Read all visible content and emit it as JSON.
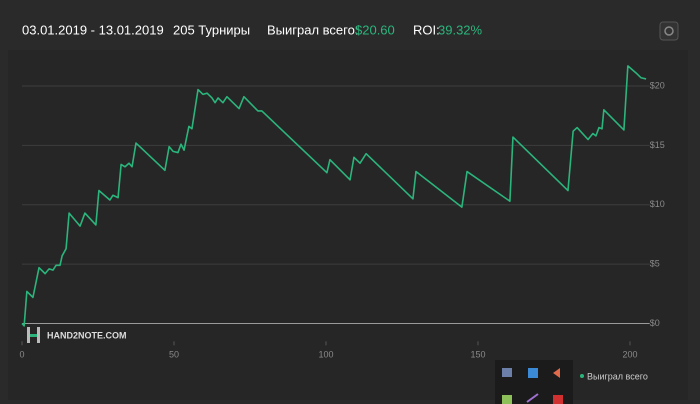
{
  "header": {
    "period": "03.01.2019 - 13.01.2019",
    "tournaments": "205 Турниры",
    "won_label": "Выиграл всего:",
    "won_value": "$20.60",
    "roi_label": "ROI:",
    "roi_value": "39.32%"
  },
  "logo": "HAND2NOTE.COM",
  "chart_data": {
    "type": "line",
    "x": [
      0,
      0.7,
      1.6,
      3.6,
      5.6,
      7.6,
      8.9,
      10.2,
      11.2,
      12.5,
      13.2,
      14.5,
      15.5,
      19.1,
      20.7,
      24.3,
      25.3,
      28.9,
      29.9,
      31.6,
      32.6,
      33.9,
      35.2,
      36.2,
      37.5,
      47,
      48.4,
      49.7,
      51.3,
      52.3,
      53.3,
      54.9,
      55.9,
      57.9,
      59.5,
      60.9,
      62.5,
      63.5,
      64.5,
      66.1,
      67.4,
      71.4,
      73,
      77.6,
      78.9,
      100.3,
      101.3,
      107.9,
      109.2,
      111.2,
      113.2,
      128.6,
      129.6,
      144.7,
      146.4,
      160.5,
      161.5,
      179.6,
      181.3,
      182.6,
      186.2,
      187.8,
      188.8,
      189.8,
      190.8,
      191.4,
      198,
      199.3,
      202,
      203.6,
      205.3
    ],
    "series": [
      {
        "name": "Выиграл всего",
        "color": "#2bb57c",
        "values": [
          0,
          -0.2,
          2.7,
          2.2,
          4.7,
          4.2,
          4.6,
          4.5,
          4.9,
          4.9,
          5.7,
          6.3,
          9.3,
          8.2,
          9.3,
          8.3,
          11.2,
          10.4,
          10.8,
          10.6,
          13.4,
          13.2,
          13.5,
          13.2,
          15.2,
          12.9,
          14.9,
          14.5,
          14.4,
          15.1,
          14.6,
          16.6,
          16.4,
          19.7,
          19.3,
          19.4,
          19.0,
          18.6,
          19.0,
          18.6,
          19.1,
          18.1,
          19.1,
          17.9,
          17.9,
          12.7,
          13.8,
          12.1,
          14.0,
          13.5,
          14.3,
          10.5,
          12.8,
          9.8,
          12.8,
          10.3,
          15.7,
          11.2,
          16.2,
          16.5,
          15.5,
          16.0,
          15.8,
          16.5,
          16.4,
          18.0,
          16.3,
          21.7,
          21.1,
          20.7,
          20.6
        ]
      }
    ],
    "xlim": [
      0,
      205.5
    ],
    "ylim": [
      -1.5,
      23.5
    ],
    "xticks": [
      0,
      50,
      100,
      150,
      200
    ],
    "yticks": [
      {
        "value": 0,
        "label": "$0"
      },
      {
        "value": 5,
        "label": "$5"
      },
      {
        "value": 10,
        "label": "$10"
      },
      {
        "value": 15,
        "label": "$15"
      },
      {
        "value": 20,
        "label": "$20"
      }
    ],
    "grid": true
  }
}
